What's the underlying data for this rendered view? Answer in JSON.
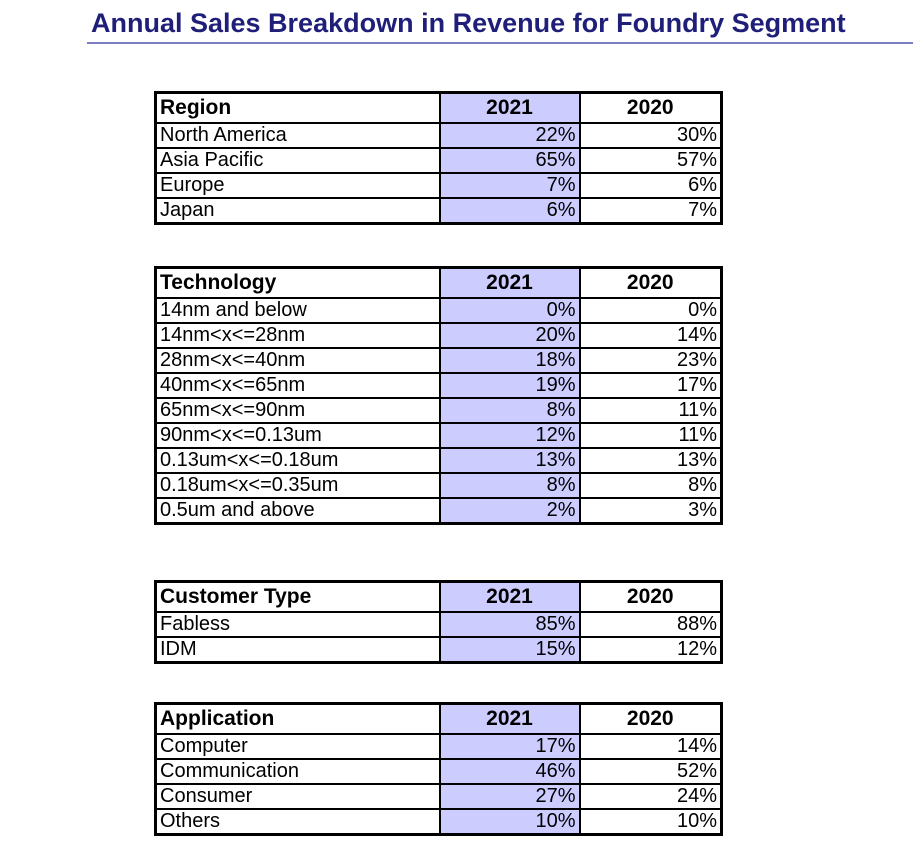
{
  "title": "Annual Sales Breakdown in Revenue for Foundry Segment",
  "colors": {
    "title": "#1f1f7a",
    "title_rule": "#7d7dc4",
    "highlight_column": "#ccccff"
  },
  "tables": {
    "region": {
      "header": [
        "Region",
        "2021",
        "2020"
      ],
      "rows": [
        [
          "North America",
          "22%",
          "30%"
        ],
        [
          "Asia Pacific",
          "65%",
          "57%"
        ],
        [
          "Europe",
          "7%",
          "6%"
        ],
        [
          "Japan",
          "6%",
          "7%"
        ]
      ]
    },
    "technology": {
      "header": [
        "Technology",
        "2021",
        "2020"
      ],
      "rows": [
        [
          "14nm and below",
          "0%",
          "0%"
        ],
        [
          "14nm<x<=28nm",
          "20%",
          "14%"
        ],
        [
          "28nm<x<=40nm",
          "18%",
          "23%"
        ],
        [
          "40nm<x<=65nm",
          "19%",
          "17%"
        ],
        [
          "65nm<x<=90nm",
          "8%",
          "11%"
        ],
        [
          "90nm<x<=0.13um",
          "12%",
          "11%"
        ],
        [
          "0.13um<x<=0.18um",
          "13%",
          "13%"
        ],
        [
          "0.18um<x<=0.35um",
          "8%",
          "8%"
        ],
        [
          "0.5um and above",
          "2%",
          "3%"
        ]
      ]
    },
    "customer": {
      "header": [
        "Customer Type",
        "2021",
        "2020"
      ],
      "rows": [
        [
          "Fabless",
          "85%",
          "88%"
        ],
        [
          "IDM",
          "15%",
          "12%"
        ]
      ]
    },
    "application": {
      "header": [
        "Application",
        "2021",
        "2020"
      ],
      "rows": [
        [
          "Computer",
          "17%",
          "14%"
        ],
        [
          "Communication",
          "46%",
          "52%"
        ],
        [
          "Consumer",
          "27%",
          "24%"
        ],
        [
          "Others",
          "10%",
          "10%"
        ]
      ]
    }
  }
}
